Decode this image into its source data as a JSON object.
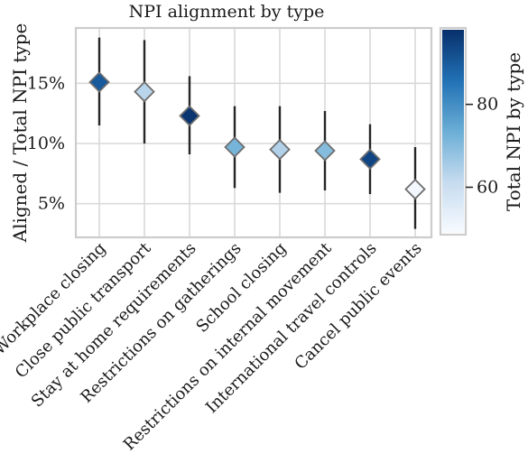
{
  "chart_data": {
    "type": "scatter",
    "title": "NPI alignment by type",
    "ylabel": "Aligned / Total NPI type",
    "ylim": [
      2.2,
      19.6
    ],
    "yticks": [
      {
        "value": 5,
        "label": "5%"
      },
      {
        "value": 10,
        "label": "10%"
      },
      {
        "value": 15,
        "label": "15%"
      }
    ],
    "grid": true,
    "marker": "diamond",
    "categories": [
      "Workplace closing",
      "Close public transport",
      "Stay at home requirements",
      "Restrictions on gatherings",
      "School closing",
      "Restrictions on internal movement",
      "International travel controls",
      "Cancel public events"
    ],
    "points": [
      {
        "y": 15.1,
        "low": 11.5,
        "high": 18.8,
        "color_value": 90
      },
      {
        "y": 14.3,
        "low": 10.0,
        "high": 18.6,
        "color_value": 63
      },
      {
        "y": 12.3,
        "low": 9.1,
        "high": 15.6,
        "color_value": 97
      },
      {
        "y": 9.7,
        "low": 6.3,
        "high": 13.1,
        "color_value": 72
      },
      {
        "y": 9.5,
        "low": 5.9,
        "high": 13.1,
        "color_value": 64
      },
      {
        "y": 9.4,
        "low": 6.1,
        "high": 12.7,
        "color_value": 70
      },
      {
        "y": 8.7,
        "low": 5.8,
        "high": 11.6,
        "color_value": 94
      },
      {
        "y": 6.2,
        "low": 2.9,
        "high": 9.7,
        "color_value": 50
      }
    ],
    "colorbar": {
      "label": "Total NPI by type",
      "range": [
        49,
        98
      ],
      "ticks": [
        {
          "value": 60,
          "label": "60"
        },
        {
          "value": 80,
          "label": "80"
        }
      ],
      "colors": [
        "#f7fbff",
        "#c6dbef",
        "#6baed6",
        "#2171b5",
        "#08306b"
      ]
    }
  }
}
